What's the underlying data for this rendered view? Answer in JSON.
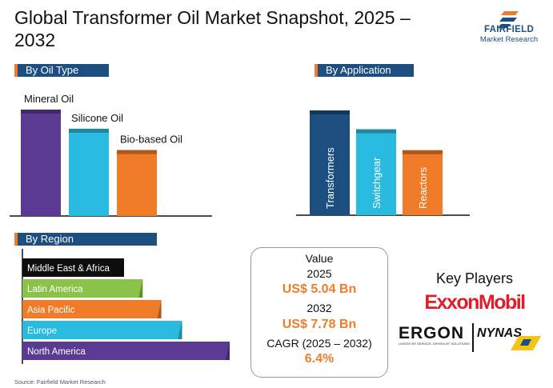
{
  "title": "Global Transformer Oil Market Snapshot, 2025 – 2032",
  "brand": {
    "name": "FAIRFIELD",
    "sub": "Market Research"
  },
  "colors": {
    "navy": "#1c4e80",
    "orange": "#f07c2a",
    "cyan": "#29bbdf",
    "purple": "#5a3a93",
    "black": "#0d0d0d",
    "green": "#8bc34a",
    "red": "#e21d2a"
  },
  "chart_data": [
    {
      "type": "bar",
      "title": "By Oil Type",
      "categories": [
        "Mineral Oil",
        "Silicone Oil",
        "Bio-based Oil"
      ],
      "values": [
        100,
        82,
        62
      ],
      "colors": [
        "purple",
        "cyan",
        "orange"
      ]
    },
    {
      "type": "bar",
      "title": "By Application",
      "categories": [
        "Transformers",
        "Switchgear",
        "Reactors"
      ],
      "values": [
        100,
        82,
        62
      ],
      "colors": [
        "navy",
        "cyan",
        "orange"
      ]
    },
    {
      "type": "bar",
      "orientation": "horizontal",
      "title": "By Region",
      "categories": [
        "Middle East & Africa",
        "Latin America",
        "Asia Pacific",
        "Europe",
        "North America"
      ],
      "values": [
        49,
        58,
        67,
        77,
        100
      ],
      "colors": [
        "black",
        "green",
        "orange",
        "cyan",
        "purple"
      ]
    }
  ],
  "value_box": {
    "heading": "Value",
    "year1": "2025",
    "value1": "US$ 5.04 Bn",
    "year2": "2032",
    "value2": "US$ 7.78 Bn",
    "cagr_label": "CAGR (2025 – 2032)",
    "cagr_value": "6.4%"
  },
  "key_players": {
    "title": "Key Players",
    "players": [
      "ExxonMobil",
      "ERGON",
      "NYNAS"
    ],
    "ergon_tagline": "LIMITED BY SERVICE. DRIVEN BY SOLUTIONS."
  },
  "source": "Source: Fairfield Market Research"
}
